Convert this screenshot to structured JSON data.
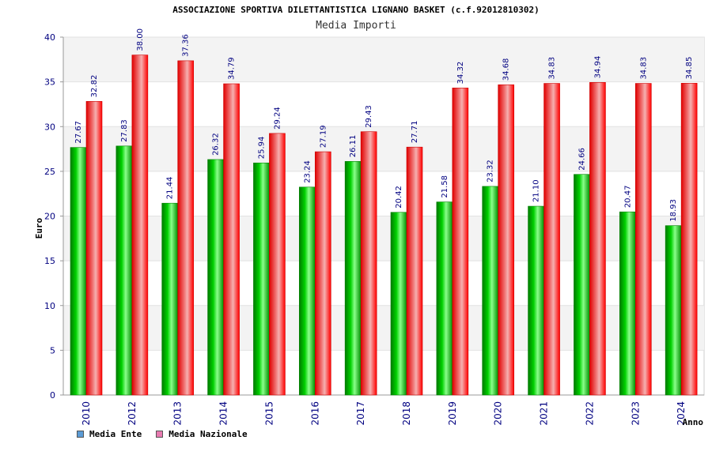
{
  "chart_data": {
    "type": "bar",
    "title": "ASSOCIAZIONE SPORTIVA DILETTANTISTICA LIGNANO BASKET (c.f.92012810302)",
    "subtitle": "Media Importi",
    "xlabel": "Anno",
    "ylabel": "Euro",
    "ylim": [
      0,
      40
    ],
    "yticks": [
      "0",
      "5",
      "10",
      "15",
      "20",
      "25",
      "30",
      "35",
      "40"
    ],
    "categories": [
      "2010",
      "2012",
      "2013",
      "2014",
      "2015",
      "2016",
      "2017",
      "2018",
      "2019",
      "2020",
      "2021",
      "2022",
      "2023",
      "2024"
    ],
    "series": [
      {
        "name": "Media Ente",
        "color": "#00b000",
        "values": [
          27.67,
          27.83,
          21.44,
          26.32,
          25.94,
          23.24,
          26.11,
          20.42,
          21.58,
          23.32,
          21.1,
          24.66,
          20.47,
          18.93
        ],
        "labels": [
          "27.67",
          "27.83",
          "21.44",
          "26.32",
          "25.94",
          "23.24",
          "26.11",
          "20.42",
          "21.58",
          "23.32",
          "21.10",
          "24.66",
          "20.47",
          "18.93"
        ]
      },
      {
        "name": "Media Nazionale",
        "color": "#ff2020",
        "values": [
          32.82,
          38.0,
          37.36,
          34.79,
          29.24,
          27.19,
          29.43,
          27.71,
          34.32,
          34.68,
          34.83,
          34.94,
          34.83,
          34.85
        ],
        "labels": [
          "32.82",
          "38.00",
          "37.36",
          "34.79",
          "29.24",
          "27.19",
          "29.43",
          "27.71",
          "34.32",
          "34.68",
          "34.83",
          "34.94",
          "34.83",
          "34.85"
        ]
      }
    ],
    "legend": {
      "placement": "bottom-left",
      "items": [
        {
          "label": "Media Ente",
          "color": "#5b9bd5"
        },
        {
          "label": "Media Nazionale",
          "color": "#e87ab0"
        }
      ]
    },
    "grid": true
  }
}
